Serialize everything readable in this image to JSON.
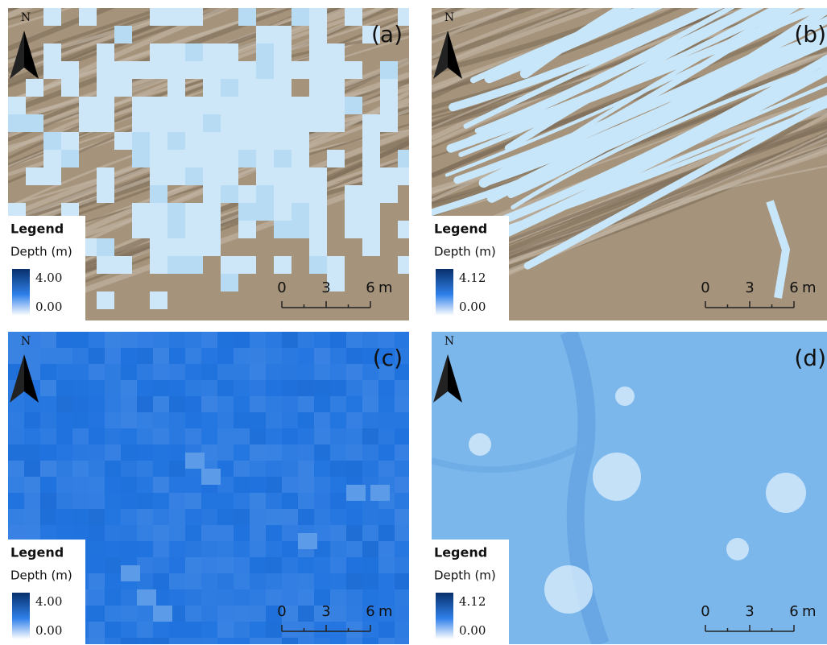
{
  "panels": [
    {
      "label": "(a)",
      "north": "N",
      "legend": {
        "title": "Legend",
        "subtitle": "Depth (m)",
        "max": "4.00",
        "min": "0.00"
      },
      "scale": {
        "ticks": [
          "0",
          "3",
          "6"
        ],
        "unit": "m"
      }
    },
    {
      "label": "(b)",
      "north": "N",
      "legend": {
        "title": "Legend",
        "subtitle": "Depth (m)",
        "max": "4.12",
        "min": "0.00"
      },
      "scale": {
        "ticks": [
          "0",
          "3",
          "6"
        ],
        "unit": "m"
      }
    },
    {
      "label": "(c)",
      "north": "N",
      "legend": {
        "title": "Legend",
        "subtitle": "Depth (m)",
        "max": "4.00",
        "min": "0.00"
      },
      "scale": {
        "ticks": [
          "0",
          "3",
          "6"
        ],
        "unit": "m"
      }
    },
    {
      "label": "(d)",
      "north": "N",
      "legend": {
        "title": "Legend",
        "subtitle": "Depth (m)",
        "max": "4.12",
        "min": "0.00"
      },
      "scale": {
        "ticks": [
          "0",
          "3",
          "6"
        ],
        "unit": "m"
      }
    }
  ]
}
